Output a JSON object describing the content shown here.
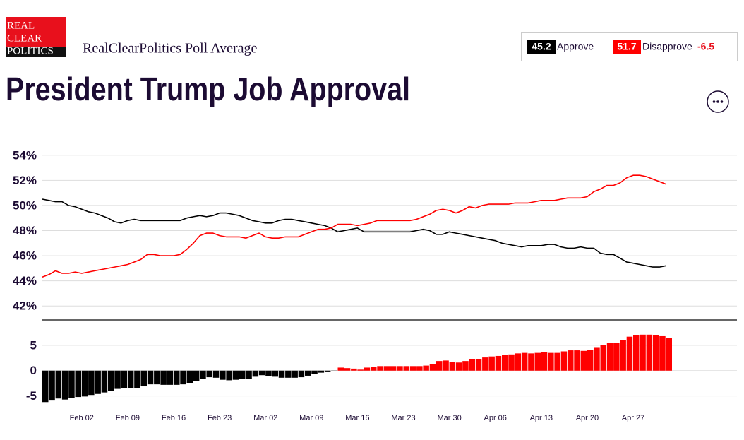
{
  "header": {
    "logo": [
      "REAL",
      "CLEAR",
      "POLITICS"
    ],
    "subtitle": "RealClearPolitics Poll Average"
  },
  "chart_data": {
    "type": "line",
    "title": "President Trump Job Approval",
    "categories": [
      null,
      null,
      null,
      null,
      null,
      null,
      "Feb 02",
      null,
      null,
      null,
      null,
      null,
      null,
      "Feb 09",
      null,
      null,
      null,
      null,
      null,
      null,
      "Feb 16",
      null,
      null,
      null,
      null,
      null,
      null,
      "Feb 23",
      null,
      null,
      null,
      null,
      null,
      null,
      "Mar 02",
      null,
      null,
      null,
      null,
      null,
      null,
      "Mar 09",
      null,
      null,
      null,
      null,
      null,
      null,
      "Mar 16",
      null,
      null,
      null,
      null,
      null,
      null,
      "Mar 23",
      null,
      null,
      null,
      null,
      null,
      null,
      "Mar 30",
      null,
      null,
      null,
      null,
      null,
      null,
      "Apr 06",
      null,
      null,
      null,
      null,
      null,
      null,
      "Apr 13",
      null,
      null,
      null,
      null,
      null,
      null,
      "Apr 20",
      null,
      null,
      null,
      null,
      null,
      null,
      "Apr 27",
      null,
      null,
      null,
      null,
      null
    ],
    "series": [
      {
        "name": "Approve",
        "color": "#000000",
        "values": [
          50.5,
          50.4,
          50.3,
          50.3,
          50.0,
          49.9,
          49.7,
          49.5,
          49.4,
          49.2,
          49.0,
          48.7,
          48.6,
          48.8,
          48.9,
          48.8,
          48.8,
          48.8,
          48.8,
          48.8,
          48.8,
          48.8,
          49.0,
          49.1,
          49.2,
          49.1,
          49.2,
          49.4,
          49.4,
          49.3,
          49.2,
          49.0,
          48.8,
          48.7,
          48.6,
          48.6,
          48.8,
          48.9,
          48.9,
          48.8,
          48.7,
          48.6,
          48.5,
          48.4,
          48.2,
          47.9,
          48.0,
          48.1,
          48.2,
          47.9,
          47.9,
          47.9,
          47.9,
          47.9,
          47.9,
          47.9,
          47.9,
          48.0,
          48.1,
          48.0,
          47.7,
          47.7,
          47.9,
          47.8,
          47.7,
          47.6,
          47.5,
          47.4,
          47.3,
          47.2,
          47.0,
          46.9,
          46.8,
          46.7,
          46.8,
          46.8,
          46.8,
          46.9,
          46.9,
          46.7,
          46.6,
          46.6,
          46.7,
          46.6,
          46.6,
          46.2,
          46.1,
          46.1,
          45.8,
          45.5,
          45.4,
          45.3,
          45.2,
          45.1,
          45.1,
          45.2
        ]
      },
      {
        "name": "Disapprove",
        "color": "#ff0000",
        "values": [
          44.3,
          44.5,
          44.8,
          44.6,
          44.6,
          44.7,
          44.6,
          44.7,
          44.8,
          44.9,
          45.0,
          45.1,
          45.2,
          45.3,
          45.5,
          45.7,
          46.1,
          46.1,
          46.0,
          46.0,
          46.0,
          46.1,
          46.5,
          47.0,
          47.6,
          47.8,
          47.8,
          47.6,
          47.5,
          47.5,
          47.5,
          47.4,
          47.6,
          47.8,
          47.5,
          47.4,
          47.4,
          47.5,
          47.5,
          47.5,
          47.7,
          47.9,
          48.1,
          48.1,
          48.2,
          48.5,
          48.5,
          48.5,
          48.4,
          48.5,
          48.6,
          48.8,
          48.8,
          48.8,
          48.8,
          48.8,
          48.8,
          48.9,
          49.1,
          49.3,
          49.6,
          49.7,
          49.6,
          49.4,
          49.6,
          49.9,
          49.8,
          50.0,
          50.1,
          50.1,
          50.1,
          50.1,
          50.2,
          50.2,
          50.2,
          50.3,
          50.4,
          50.4,
          50.4,
          50.5,
          50.6,
          50.6,
          50.6,
          50.7,
          51.1,
          51.3,
          51.6,
          51.6,
          51.8,
          52.2,
          52.4,
          52.4,
          52.3,
          52.1,
          51.9,
          51.7
        ]
      }
    ],
    "legend_values": [
      45.2,
      51.7
    ],
    "spread_label": -6.5,
    "ylim": [
      41,
      55
    ],
    "yticks": [
      {
        "value": 54,
        "label": "54%"
      },
      {
        "value": 52,
        "label": "52%"
      },
      {
        "value": 50,
        "label": "50%"
      },
      {
        "value": 48,
        "label": "48%"
      },
      {
        "value": 46,
        "label": "46%"
      },
      {
        "value": 44,
        "label": "44%"
      },
      {
        "value": 42,
        "label": "42%"
      }
    ],
    "grid": true,
    "spread": {
      "type": "bar",
      "values": [
        -6.2,
        -5.9,
        -5.5,
        -5.7,
        -5.4,
        -5.2,
        -5.1,
        -4.8,
        -4.6,
        -4.3,
        -4.0,
        -3.6,
        -3.4,
        -3.5,
        -3.4,
        -3.1,
        -2.7,
        -2.7,
        -2.8,
        -2.8,
        -2.8,
        -2.7,
        -2.5,
        -2.1,
        -1.6,
        -1.3,
        -1.4,
        -1.8,
        -1.9,
        -1.8,
        -1.7,
        -1.6,
        -1.2,
        -0.9,
        -1.1,
        -1.2,
        -1.4,
        -1.4,
        -1.4,
        -1.3,
        -1.0,
        -0.7,
        -0.4,
        -0.3,
        -0.1,
        0.6,
        0.5,
        0.4,
        0.2,
        0.6,
        0.7,
        0.9,
        0.9,
        0.9,
        0.9,
        0.9,
        0.9,
        0.9,
        1.0,
        1.3,
        1.9,
        2.0,
        1.7,
        1.6,
        1.9,
        2.3,
        2.3,
        2.6,
        2.8,
        2.9,
        3.1,
        3.2,
        3.4,
        3.5,
        3.4,
        3.5,
        3.6,
        3.5,
        3.5,
        3.8,
        4.0,
        4.0,
        3.9,
        4.1,
        4.5,
        5.1,
        5.5,
        5.5,
        6.0,
        6.7,
        7.0,
        7.1,
        7.1,
        7.0,
        6.8,
        6.5
      ],
      "positive_color": "#ff0000",
      "negative_color": "#000000",
      "ylim": [
        -7,
        10
      ],
      "yticks": [
        5,
        0,
        -5
      ],
      "grid": true
    }
  }
}
